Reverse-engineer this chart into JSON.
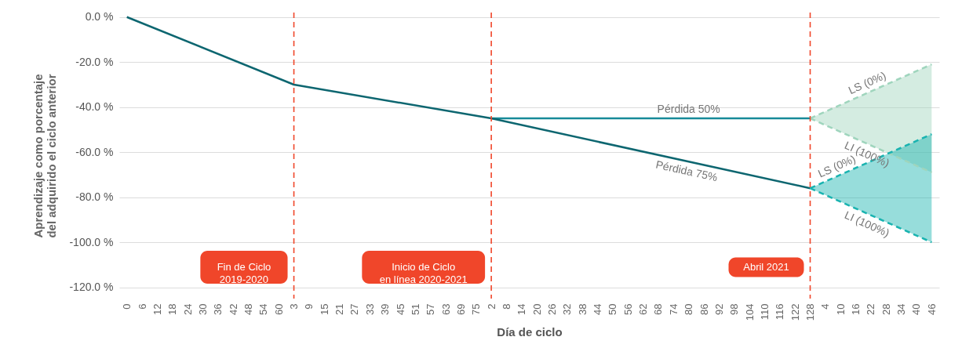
{
  "chart_data": {
    "type": "line",
    "xlabel": "Día de ciclo",
    "ylabel": "Aprendizaje como porcentaje\ndel adquirido el ciclo anterior",
    "categories": [
      "0",
      "6",
      "12",
      "18",
      "24",
      "30",
      "36",
      "42",
      "48",
      "54",
      "60",
      "3",
      "9",
      "15",
      "21",
      "27",
      "33",
      "39",
      "45",
      "51",
      "57",
      "63",
      "69",
      "75",
      "2",
      "8",
      "14",
      "20",
      "26",
      "32",
      "38",
      "44",
      "50",
      "56",
      "62",
      "68",
      "74",
      "80",
      "86",
      "92",
      "98",
      "104",
      "110",
      "116",
      "122",
      "128",
      "4",
      "10",
      "16",
      "22",
      "28",
      "34",
      "40",
      "46"
    ],
    "series": [
      {
        "name": "Pérdida 50%",
        "color": "#178a99",
        "values": [
          null,
          null,
          null,
          null,
          null,
          null,
          null,
          null,
          null,
          null,
          null,
          null,
          null,
          null,
          null,
          null,
          null,
          null,
          null,
          null,
          null,
          null,
          null,
          null,
          -45,
          null,
          null,
          null,
          null,
          null,
          null,
          null,
          null,
          null,
          null,
          null,
          null,
          null,
          null,
          null,
          null,
          null,
          null,
          null,
          null,
          -45,
          null,
          null,
          null,
          null,
          null,
          null,
          null,
          null
        ]
      },
      {
        "name": "Pérdida 75%",
        "color": "#0d6670",
        "values": [
          0,
          null,
          null,
          null,
          null,
          null,
          null,
          null,
          null,
          null,
          null,
          -30,
          null,
          null,
          null,
          null,
          null,
          null,
          null,
          null,
          null,
          null,
          null,
          null,
          -45,
          null,
          null,
          null,
          null,
          null,
          null,
          null,
          null,
          null,
          null,
          null,
          null,
          null,
          null,
          null,
          null,
          null,
          null,
          null,
          null,
          -76,
          null,
          null,
          null,
          null,
          null,
          null,
          null,
          null
        ]
      },
      {
        "name": "LS (0%)",
        "color": "#9fd5bd",
        "line_style": "dashed",
        "values": [
          null,
          null,
          null,
          null,
          null,
          null,
          null,
          null,
          null,
          null,
          null,
          null,
          null,
          null,
          null,
          null,
          null,
          null,
          null,
          null,
          null,
          null,
          null,
          null,
          null,
          null,
          null,
          null,
          null,
          null,
          null,
          null,
          null,
          null,
          null,
          null,
          null,
          null,
          null,
          null,
          null,
          null,
          null,
          null,
          null,
          -45,
          null,
          null,
          null,
          null,
          null,
          null,
          null,
          -21
        ],
        "lower": [
          null,
          null,
          null,
          null,
          null,
          null,
          null,
          null,
          null,
          null,
          null,
          null,
          null,
          null,
          null,
          null,
          null,
          null,
          null,
          null,
          null,
          null,
          null,
          null,
          null,
          null,
          null,
          null,
          null,
          null,
          null,
          null,
          null,
          null,
          null,
          null,
          null,
          null,
          null,
          null,
          null,
          null,
          null,
          null,
          null,
          -45,
          null,
          null,
          null,
          null,
          null,
          null,
          null,
          -69
        ],
        "upper": [
          null,
          null,
          null,
          null,
          null,
          null,
          null,
          null,
          null,
          null,
          null,
          null,
          null,
          null,
          null,
          null,
          null,
          null,
          null,
          null,
          null,
          null,
          null,
          null,
          null,
          null,
          null,
          null,
          null,
          null,
          null,
          null,
          null,
          null,
          null,
          null,
          null,
          null,
          null,
          null,
          null,
          null,
          null,
          null,
          null,
          -45,
          null,
          null,
          null,
          null,
          null,
          null,
          null,
          -21
        ]
      },
      {
        "name": "LI (100%)",
        "color": "#9fd5bd",
        "line_style": "dashed",
        "values": [
          null,
          null,
          null,
          null,
          null,
          null,
          null,
          null,
          null,
          null,
          null,
          null,
          null,
          null,
          null,
          null,
          null,
          null,
          null,
          null,
          null,
          null,
          null,
          null,
          null,
          null,
          null,
          null,
          null,
          null,
          null,
          null,
          null,
          null,
          null,
          null,
          null,
          null,
          null,
          null,
          null,
          null,
          null,
          null,
          null,
          -45,
          null,
          null,
          null,
          null,
          null,
          null,
          null,
          -69
        ]
      },
      {
        "name": "LS (0%)",
        "color": "#19b3b0",
        "line_style": "dashed",
        "values": [
          null,
          null,
          null,
          null,
          null,
          null,
          null,
          null,
          null,
          null,
          null,
          null,
          null,
          null,
          null,
          null,
          null,
          null,
          null,
          null,
          null,
          null,
          null,
          null,
          null,
          null,
          null,
          null,
          null,
          null,
          null,
          null,
          null,
          null,
          null,
          null,
          null,
          null,
          null,
          null,
          null,
          null,
          null,
          null,
          null,
          -76,
          null,
          null,
          null,
          null,
          null,
          null,
          null,
          -52
        ],
        "lower": [
          null,
          null,
          null,
          null,
          null,
          null,
          null,
          null,
          null,
          null,
          null,
          null,
          null,
          null,
          null,
          null,
          null,
          null,
          null,
          null,
          null,
          null,
          null,
          null,
          null,
          null,
          null,
          null,
          null,
          null,
          null,
          null,
          null,
          null,
          null,
          null,
          null,
          null,
          null,
          null,
          null,
          null,
          null,
          null,
          null,
          -76,
          null,
          null,
          null,
          null,
          null,
          null,
          null,
          -100
        ],
        "upper": [
          null,
          null,
          null,
          null,
          null,
          null,
          null,
          null,
          null,
          null,
          null,
          null,
          null,
          null,
          null,
          null,
          null,
          null,
          null,
          null,
          null,
          null,
          null,
          null,
          null,
          null,
          null,
          null,
          null,
          null,
          null,
          null,
          null,
          null,
          null,
          null,
          null,
          null,
          null,
          null,
          null,
          null,
          null,
          null,
          null,
          -76,
          null,
          null,
          null,
          null,
          null,
          null,
          null,
          -52
        ]
      },
      {
        "name": "LI (100%)",
        "color": "#19b3b0",
        "line_style": "dashed",
        "values": [
          null,
          null,
          null,
          null,
          null,
          null,
          null,
          null,
          null,
          null,
          null,
          null,
          null,
          null,
          null,
          null,
          null,
          null,
          null,
          null,
          null,
          null,
          null,
          null,
          null,
          null,
          null,
          null,
          null,
          null,
          null,
          null,
          null,
          null,
          null,
          null,
          null,
          null,
          null,
          null,
          null,
          null,
          null,
          null,
          null,
          -76,
          null,
          null,
          null,
          null,
          null,
          null,
          null,
          -100
        ]
      }
    ],
    "ref_lines": [
      {
        "axis": "x",
        "value": "3",
        "label": "Fin de Ciclo\n2019-2020",
        "color": "#f0462a",
        "line_style": "dashed"
      },
      {
        "axis": "x",
        "value": "2",
        "label": "Inicio de Ciclo\nen línea 2020-2021",
        "color": "#f0462a",
        "line_style": "dashed"
      },
      {
        "axis": "x",
        "value": "128",
        "label": "Abril 2021",
        "color": "#f0462a",
        "line_style": "dashed"
      }
    ],
    "ylim": [
      -125,
      2
    ],
    "yticks": [
      {
        "value": 0,
        "label": "0.0 %"
      },
      {
        "value": -20,
        "label": "-20.0 %"
      },
      {
        "value": -40,
        "label": "-40.0 %"
      },
      {
        "value": -60,
        "label": "-60.0 %"
      },
      {
        "value": -80,
        "label": "-80.0 %"
      },
      {
        "value": -100,
        "label": "-100.0 %"
      },
      {
        "value": -120,
        "label": "-120.0 %"
      }
    ],
    "grid": "y",
    "marker": "none"
  }
}
